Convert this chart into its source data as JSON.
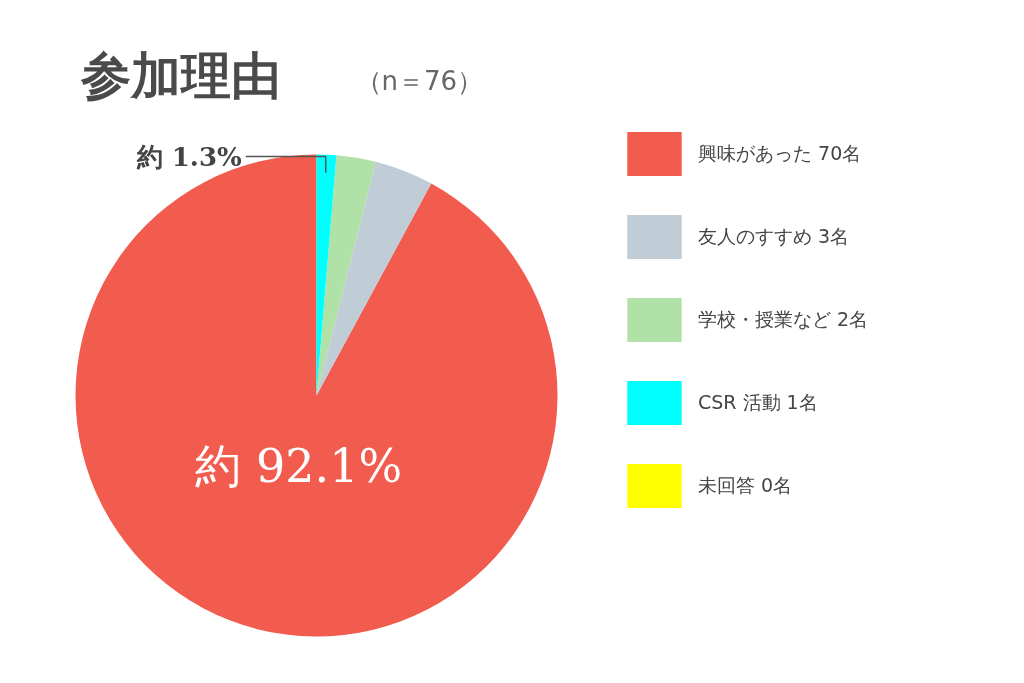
{
  "chart_data": {
    "type": "pie",
    "title": "参加理由",
    "subtitle": "（n＝76）",
    "categories": [
      "興味があった 70名",
      "友人のすすめ 3名",
      "学校・授業など 2名",
      "CSR 活動 1名",
      "未回答 0名"
    ],
    "values": [
      70,
      3,
      2,
      1,
      0
    ],
    "colors": [
      "#f25c4e",
      "#c0ccd6",
      "#b0e1a6",
      "#00ffff",
      "#ffff00"
    ],
    "value_labels": [
      "約 92.1%",
      null,
      null,
      "約 1.3%",
      null
    ],
    "legend": "right"
  }
}
